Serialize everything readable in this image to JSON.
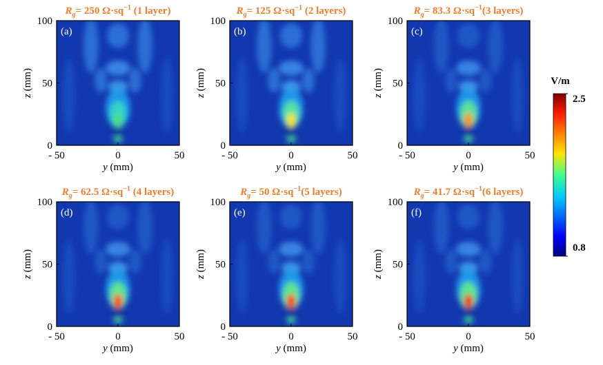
{
  "chart_data": [
    {
      "type": "heatmap",
      "panel": "(a)",
      "title_symbol": "R",
      "title_sub": "g",
      "title_mid": "= 250 Ω·sq",
      "title_sup": "−1",
      "title_end": " (1 layer)",
      "xlabel_var": "y",
      "xlabel_unit": " (mm)",
      "ylabel_var": "z",
      "ylabel_unit": " (mm)",
      "xlim": [
        -50,
        50
      ],
      "ylim": [
        0,
        100
      ],
      "xticks": [
        {
          "value": -50,
          "label": "- 50"
        },
        0,
        50
      ],
      "yticks": [
        0,
        50,
        100
      ]
    },
    {
      "type": "heatmap",
      "panel": "(b)",
      "title_symbol": "R",
      "title_sub": "g",
      "title_mid": "= 125 Ω·sq",
      "title_sup": "−1",
      "title_end": " (2 layers)",
      "xlabel_var": "y",
      "xlabel_unit": " (mm)",
      "ylabel_var": "z",
      "ylabel_unit": " (mm)",
      "xlim": [
        -50,
        50
      ],
      "ylim": [
        0,
        100
      ],
      "xticks": [
        {
          "value": -50,
          "label": "- 50"
        },
        0,
        50
      ],
      "yticks": [
        0,
        50,
        100
      ]
    },
    {
      "type": "heatmap",
      "panel": "(c)",
      "title_symbol": "R",
      "title_sub": "g",
      "title_mid": "= 83.3 Ω·sq",
      "title_sup": "−1",
      "title_end": "(3 layers)",
      "xlabel_var": "y",
      "xlabel_unit": " (mm)",
      "ylabel_var": "z",
      "ylabel_unit": " (mm)",
      "xlim": [
        -50,
        50
      ],
      "ylim": [
        0,
        100
      ],
      "xticks": [
        {
          "value": -50,
          "label": "- 50"
        },
        0,
        50
      ],
      "yticks": [
        0,
        50,
        100
      ]
    },
    {
      "type": "heatmap",
      "panel": "(d)",
      "title_symbol": "R",
      "title_sub": "g",
      "title_mid": "= 62.5 Ω·sq",
      "title_sup": "−1",
      "title_end": " (4 layers)",
      "xlabel_var": "y",
      "xlabel_unit": " (mm)",
      "ylabel_var": "z",
      "ylabel_unit": " (mm)",
      "xlim": [
        -50,
        50
      ],
      "ylim": [
        0,
        100
      ],
      "xticks": [
        {
          "value": -50,
          "label": "- 50"
        },
        0,
        50
      ],
      "yticks": [
        0,
        50,
        100
      ]
    },
    {
      "type": "heatmap",
      "panel": "(e)",
      "title_symbol": "R",
      "title_sub": "g",
      "title_mid": "= 50 Ω·sq",
      "title_sup": "−1",
      "title_end": "(5 layers)",
      "xlabel_var": "y",
      "xlabel_unit": " (mm)",
      "ylabel_var": "z",
      "ylabel_unit": " (mm)",
      "xlim": [
        -50,
        50
      ],
      "ylim": [
        0,
        100
      ],
      "xticks": [
        {
          "value": -50,
          "label": "- 50"
        },
        0,
        50
      ],
      "yticks": [
        0,
        50,
        100
      ]
    },
    {
      "type": "heatmap",
      "panel": "(f)",
      "title_symbol": "R",
      "title_sub": "g",
      "title_mid": "= 41.7 Ω·sq",
      "title_sup": "−1",
      "title_end": "(6 layers)",
      "xlabel_var": "y",
      "xlabel_unit": " (mm)",
      "ylabel_var": "z",
      "ylabel_unit": " (mm)",
      "xlim": [
        -50,
        50
      ],
      "ylim": [
        0,
        100
      ],
      "xticks": [
        {
          "value": -50,
          "label": "- 50"
        },
        0,
        50
      ],
      "yticks": [
        0,
        50,
        100
      ]
    }
  ],
  "colorbar": {
    "label": "V/m",
    "lim": [
      0.8,
      2.5
    ],
    "ticks": [
      0.8,
      2.5
    ]
  }
}
